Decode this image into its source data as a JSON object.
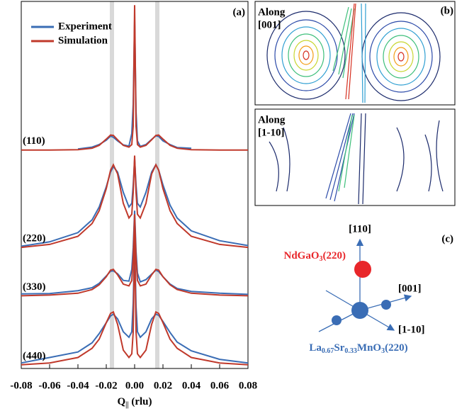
{
  "chart_data": {
    "type": "line",
    "panel_label": "(a)",
    "xlabel": "Q",
    "xlabel_sub": "||",
    "xlabel_unit": "(rlu)",
    "xlim": [
      -0.08,
      0.08
    ],
    "ylim": [
      0,
      100
    ],
    "xticks": [
      -0.08,
      -0.06,
      -0.04,
      -0.02,
      {
        "value": 0,
        "label": "0.00"
      },
      0.02,
      0.04,
      0.06,
      0.08
    ],
    "highlight_x": [
      -0.016,
      0.016
    ],
    "curve_labels": [
      "(110)",
      "(220)",
      "(330)",
      "(440)"
    ],
    "x": [
      -0.08,
      -0.06,
      -0.04,
      -0.03,
      -0.025,
      -0.02,
      -0.017,
      -0.015,
      -0.012,
      -0.008,
      -0.004,
      -0.002,
      -0.001,
      0,
      0.001,
      0.002,
      0.004,
      0.008,
      0.012,
      0.015,
      0.017,
      0.02,
      0.025,
      0.03,
      0.04,
      0.06,
      0.08
    ],
    "series": [
      {
        "name": "Experiment",
        "color": "#3a6db5",
        "curves": [
          [
            null,
            null,
            59.8,
            60.3,
            61.0,
            62.2,
            63.3,
            63.0,
            62.0,
            60.9,
            60.6,
            64,
            72,
            95,
            70,
            62,
            60.5,
            61.0,
            62.4,
            63.4,
            63.2,
            62.0,
            61.0,
            60.2,
            60.0,
            null,
            null
          ],
          [
            33.3,
            34.5,
            37,
            40.5,
            44,
            49.5,
            53.5,
            55,
            53.5,
            48,
            44,
            45,
            50,
            57,
            50,
            45,
            44,
            48,
            53.5,
            55.5,
            54,
            50,
            44.5,
            41,
            37.5,
            34.8,
            33.5
          ],
          [
            20.3,
            20.4,
            21.2,
            22.0,
            23.2,
            25.2,
            26.5,
            26.6,
            25.8,
            24,
            23.8,
            27,
            33,
            43,
            32,
            26,
            23.6,
            24.2,
            25.7,
            26.8,
            26.4,
            25,
            23.0,
            21.8,
            21.0,
            20.5,
            20.2
          ],
          [
            1.5,
            3,
            4.5,
            7,
            9.5,
            12.5,
            14.3,
            14.8,
            13.5,
            10,
            8.5,
            10,
            18,
            35,
            17,
            10,
            8.5,
            10,
            13.5,
            14.8,
            14.5,
            12.8,
            9.8,
            7.2,
            4.8,
            2.5,
            1.5
          ]
        ]
      },
      {
        "name": "Simulation",
        "color": "#c0392b",
        "curves": [
          [
            59.5,
            59.5,
            59.6,
            60.0,
            60.8,
            62.5,
            63.6,
            63.5,
            62.3,
            60.8,
            60.3,
            61,
            66,
            99,
            66,
            61,
            60.3,
            60.8,
            62.3,
            63.5,
            63.6,
            62.5,
            60.8,
            60.0,
            59.6,
            59.5,
            59.5
          ],
          [
            33,
            33.8,
            36,
            39.5,
            43,
            49,
            54,
            55.5,
            53,
            45,
            41,
            42,
            48,
            58,
            48,
            42,
            41,
            45,
            53,
            55.5,
            54,
            49,
            43,
            39.5,
            36,
            33.8,
            33
          ],
          [
            19.8,
            20,
            20.5,
            21.5,
            22.8,
            25,
            26.8,
            27,
            25.5,
            23,
            22.5,
            24,
            30,
            42,
            30,
            24,
            22.5,
            23,
            25.5,
            27,
            26.8,
            25,
            22.8,
            21.5,
            20.5,
            20,
            19.8
          ],
          [
            1,
            1.5,
            3,
            5.5,
            8,
            12.5,
            15,
            15.4,
            12,
            5,
            3,
            4,
            10,
            36,
            10,
            4,
            3,
            5,
            12,
            15.4,
            15,
            12.5,
            8,
            5.5,
            3,
            1.5,
            1
          ]
        ]
      }
    ]
  },
  "panel_b": {
    "label": "(b)",
    "maps": [
      {
        "label_lines": [
          "Along",
          "[001]"
        ]
      },
      {
        "label_lines": [
          "Along",
          "[1-10]"
        ]
      }
    ]
  },
  "panel_c": {
    "label": "(c)",
    "axis_110": "[110]",
    "axis_001": "[001]",
    "axis_1m10": "[1-10]",
    "substrate": [
      "NdGaO",
      "3",
      "(220)"
    ],
    "film": [
      "La",
      "0.67",
      "Sr",
      "0.33",
      "MnO",
      "3",
      "(220)"
    ]
  }
}
